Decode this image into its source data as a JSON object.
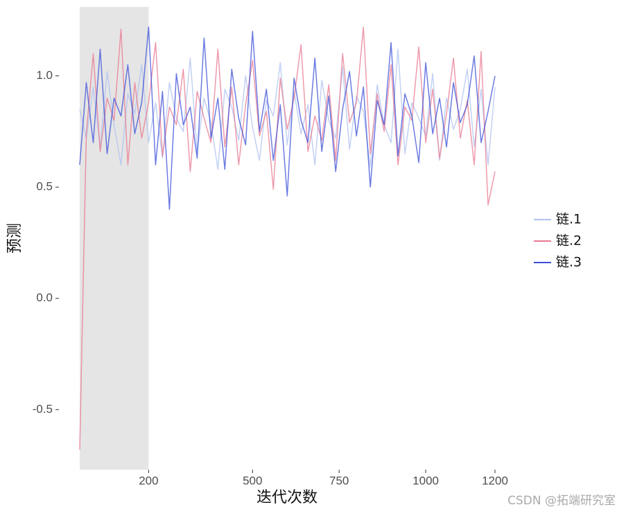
{
  "chart_data": {
    "type": "line",
    "x_label": "迭代次数",
    "y_label": "预测",
    "watermark": "CSDN @拓端研究室",
    "legend": "right",
    "grid": false,
    "warmup": [
      1,
      200
    ],
    "xlim": [
      1,
      1200
    ],
    "xticks": [
      200,
      500,
      750,
      1000,
      1200
    ],
    "ylim": [
      -0.77,
      1.31
    ],
    "yticks": [
      -0.5,
      {
        "value": 0,
        "label": "0.0"
      },
      0.5,
      {
        "value": 1,
        "label": "1.0"
      }
    ],
    "x": [
      1,
      20,
      40,
      60,
      80,
      100,
      120,
      140,
      160,
      180,
      200,
      220,
      240,
      260,
      280,
      300,
      320,
      340,
      360,
      380,
      400,
      420,
      440,
      460,
      480,
      500,
      520,
      540,
      560,
      580,
      600,
      620,
      640,
      660,
      680,
      700,
      720,
      740,
      760,
      780,
      800,
      820,
      840,
      860,
      880,
      900,
      920,
      940,
      960,
      980,
      1000,
      1020,
      1040,
      1060,
      1080,
      1100,
      1120,
      1140,
      1160,
      1180,
      1200
    ],
    "series": [
      {
        "name": "链.1",
        "color": "#aec1f0",
        "values": [
          0.85,
          0.72,
          0.95,
          0.68,
          1.02,
          0.78,
          0.6,
          0.92,
          0.83,
          1.05,
          0.7,
          0.88,
          0.63,
          0.97,
          0.81,
          0.75,
          1.08,
          0.66,
          0.9,
          0.79,
          0.58,
          0.94,
          0.86,
          0.71,
          1.0,
          0.77,
          0.62,
          0.89,
          0.82,
          1.06,
          0.69,
          0.93,
          0.74,
          0.87,
          0.6,
          0.98,
          0.8,
          0.72,
          1.04,
          0.67,
          0.91,
          0.84,
          0.59,
          0.96,
          0.78,
          0.7,
          1.12,
          0.65,
          0.88,
          0.81,
          0.73,
          1.01,
          0.62,
          0.9,
          0.76,
          0.85,
          1.03,
          0.68,
          0.94,
          0.6,
          0.95
        ]
      },
      {
        "name": "链.2",
        "color": "#e8788f",
        "values": [
          -0.68,
          0.74,
          1.1,
          0.66,
          0.9,
          0.8,
          1.21,
          0.6,
          0.97,
          0.72,
          0.88,
          1.15,
          0.64,
          0.86,
          0.78,
          1.03,
          0.57,
          0.93,
          0.81,
          0.7,
          1.12,
          0.68,
          0.95,
          0.6,
          0.87,
          1.07,
          0.73,
          0.84,
          0.49,
          0.99,
          0.76,
          0.9,
          1.14,
          0.66,
          0.82,
          0.71,
          0.96,
          0.62,
          1.1,
          0.79,
          0.88,
          1.22,
          0.65,
          0.92,
          0.75,
          1.05,
          0.6,
          0.86,
          0.8,
          1.13,
          0.7,
          0.94,
          0.63,
          0.83,
          1.08,
          0.72,
          0.89,
          0.6,
          1.11,
          0.42,
          0.57
        ]
      },
      {
        "name": "链.3",
        "color": "#3b4fd8",
        "values": [
          0.6,
          0.97,
          0.7,
          1.12,
          0.65,
          0.9,
          0.82,
          1.05,
          0.74,
          0.88,
          1.22,
          0.6,
          0.93,
          0.4,
          1.01,
          0.78,
          0.86,
          0.63,
          1.17,
          0.72,
          0.9,
          0.58,
          1.03,
          0.81,
          0.69,
          1.2,
          0.75,
          0.94,
          0.62,
          0.87,
          0.46,
          0.99,
          0.8,
          0.7,
          1.08,
          0.66,
          0.91,
          0.57,
          0.85,
          1.02,
          0.73,
          0.95,
          0.5,
          0.89,
          0.78,
          1.15,
          0.64,
          0.92,
          0.82,
          0.61,
          1.06,
          0.74,
          0.9,
          0.68,
          0.97,
          0.79,
          0.87,
          1.09,
          0.7,
          0.84,
          1.0
        ]
      }
    ]
  }
}
